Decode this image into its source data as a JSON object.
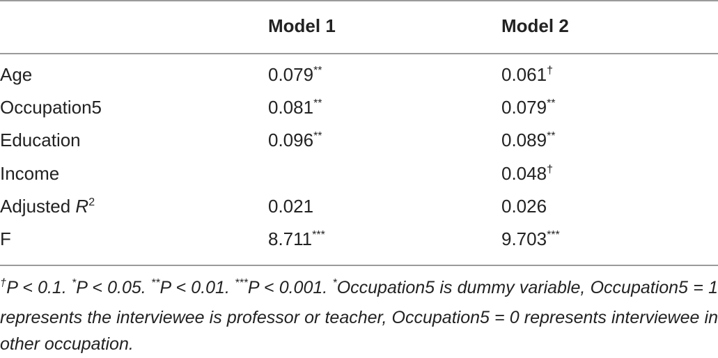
{
  "table": {
    "header": [
      "Model 1",
      "Model 2"
    ],
    "rows": [
      {
        "label": [
          {
            "text": "Age"
          }
        ],
        "cells": [
          [
            {
              "text": "0.079"
            },
            {
              "text": "**",
              "sup": true
            }
          ],
          [
            {
              "text": "0.061"
            },
            {
              "text": "†",
              "sup": true
            }
          ]
        ]
      },
      {
        "label": [
          {
            "text": "Occupation5"
          }
        ],
        "cells": [
          [
            {
              "text": "0.081"
            },
            {
              "text": "**",
              "sup": true
            }
          ],
          [
            {
              "text": "0.079"
            },
            {
              "text": "**",
              "sup": true
            }
          ]
        ]
      },
      {
        "label": [
          {
            "text": "Education"
          }
        ],
        "cells": [
          [
            {
              "text": "0.096"
            },
            {
              "text": "**",
              "sup": true
            }
          ],
          [
            {
              "text": "0.089"
            },
            {
              "text": "**",
              "sup": true
            }
          ]
        ]
      },
      {
        "label": [
          {
            "text": "Income"
          }
        ],
        "cells": [
          null,
          [
            {
              "text": "0.048"
            },
            {
              "text": "†",
              "sup": true
            }
          ]
        ]
      },
      {
        "label": [
          {
            "text": "Adjusted "
          },
          {
            "text": "R",
            "italic": true
          },
          {
            "text": "2",
            "sup": true
          }
        ],
        "cells": [
          [
            {
              "text": "0.021"
            }
          ],
          [
            {
              "text": "0.026"
            }
          ]
        ]
      },
      {
        "label": [
          {
            "text": "F"
          }
        ],
        "cells": [
          [
            {
              "text": "8.711"
            },
            {
              "text": "***",
              "sup": true
            }
          ],
          [
            {
              "text": "9.703"
            },
            {
              "text": "***",
              "sup": true
            }
          ]
        ]
      }
    ]
  },
  "footnote": [
    {
      "text": "†",
      "sup": true
    },
    {
      "text": "P < 0.1. "
    },
    {
      "text": "*",
      "sup": true
    },
    {
      "text": "P < 0.05. "
    },
    {
      "text": "**",
      "sup": true
    },
    {
      "text": "P < 0.01. "
    },
    {
      "text": "***",
      "sup": true
    },
    {
      "text": "P < 0.001. "
    },
    {
      "text": "*",
      "sup": true
    },
    {
      "text": "Occupation5 is dummy variable, Occupation5 = 1 represents the interviewee is professor or teacher, Occupation5 = 0 represents interviewee in other occupation."
    }
  ]
}
